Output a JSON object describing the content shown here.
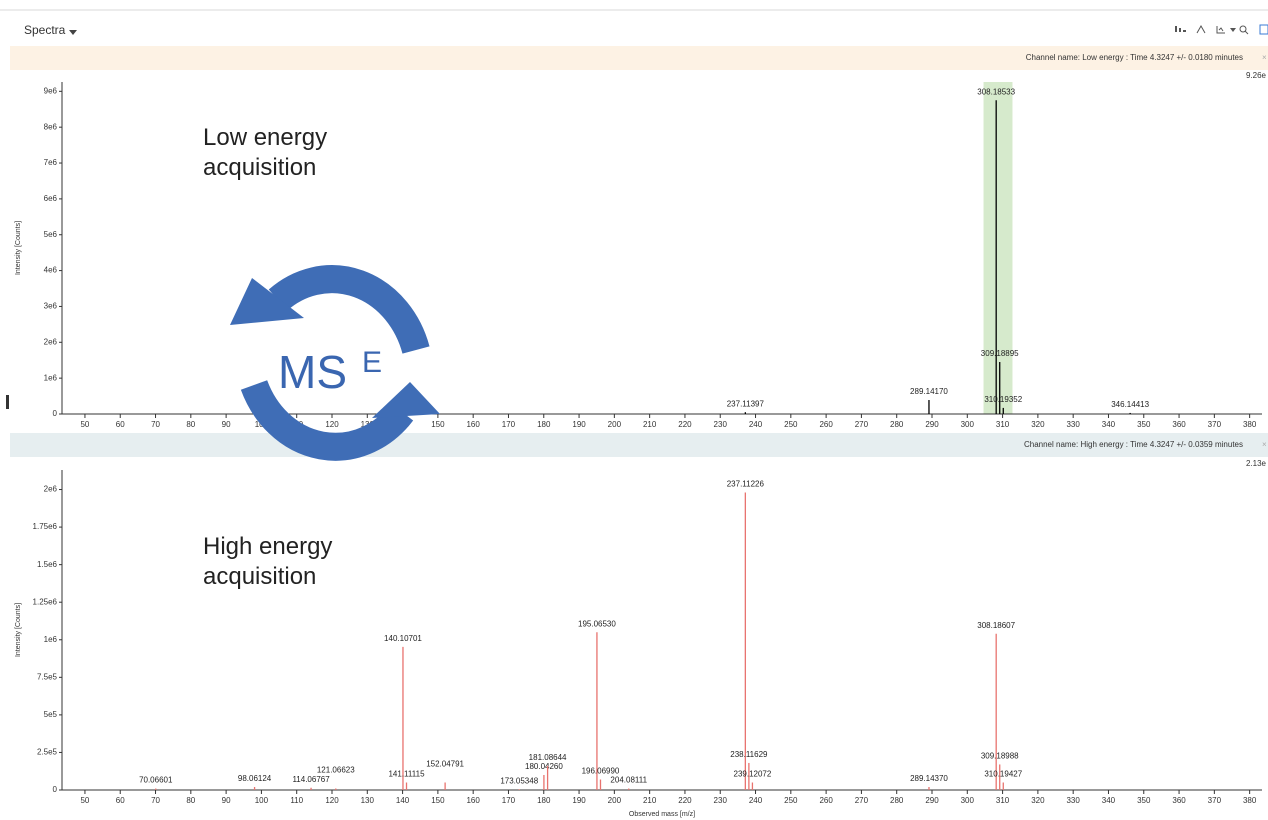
{
  "header": {
    "title": "Spectra"
  },
  "overlay": {
    "low": "Low energy acquisition",
    "high": "High energy acquisition",
    "ms": "MS",
    "sup": "E"
  },
  "chart_data": [
    {
      "type": "bar",
      "channel": "Channel name: Low energy : Time 4.3247 +/- 0.0180 minutes",
      "max_label": "9.26e",
      "ylabel": "Intensity [Counts]",
      "color": "#000000",
      "x": [
        237.11397,
        289.1417,
        308.18533,
        309.18895,
        310.19352,
        346.14413
      ],
      "x_labels": [
        "237.11397",
        "289.14170",
        "308.18533",
        "309.18895",
        "310.19352",
        "346.14413"
      ],
      "values": [
        50000,
        390000,
        8750000,
        1450000,
        170000,
        30000
      ],
      "xlim": [
        43.5,
        383.5
      ],
      "ylim": [
        0,
        9260000
      ],
      "xticks": [
        50,
        60,
        70,
        80,
        90,
        100,
        110,
        120,
        130,
        140,
        150,
        160,
        170,
        180,
        190,
        200,
        210,
        220,
        230,
        240,
        250,
        260,
        270,
        280,
        290,
        300,
        310,
        320,
        330,
        340,
        350,
        360,
        370,
        380
      ],
      "yticks": [
        0,
        {
          "value": 1000000,
          "label": "1e6"
        },
        {
          "value": 2000000,
          "label": "2e6"
        },
        {
          "value": 3000000,
          "label": "3e6"
        },
        {
          "value": 4000000,
          "label": "4e6"
        },
        {
          "value": 5000000,
          "label": "5e6"
        },
        {
          "value": 6000000,
          "label": "6e6"
        },
        {
          "value": 7000000,
          "label": "7e6"
        },
        {
          "value": 8000000,
          "label": "8e6"
        },
        {
          "value": 9000000,
          "label": "9e6"
        }
      ],
      "highlight": [
        304.6,
        312.8
      ],
      "highlight_color": "#d6eacc"
    },
    {
      "type": "bar",
      "channel": "Channel name: High energy : Time 4.3247 +/- 0.0359 minutes",
      "max_label": "2.13e",
      "ylabel": "Intensity [Counts]",
      "xlabel": "Observed mass [m/z]",
      "color": "#e8736e",
      "x": [
        70.06601,
        98.06124,
        114.06767,
        121.06623,
        140.10701,
        141.11115,
        152.04791,
        173.05348,
        180.0426,
        181.08644,
        195.0653,
        196.0699,
        204.08111,
        237.11226,
        238.11629,
        239.12072,
        289.1437,
        308.18607,
        309.18988,
        310.19427
      ],
      "x_labels": [
        "70.06601",
        "98.06124",
        "114.06767",
        "121.06623",
        "140.10701",
        "141.11115",
        "152.04791",
        "173.05348",
        "180.04260",
        "181.08644",
        "195.06530",
        "196.06990",
        "204.08111",
        "237.11226",
        "238.11629",
        "239.12072",
        "289.14370",
        "308.18607",
        "309.18988",
        "310.19427"
      ],
      "values": [
        10000,
        20000,
        15000,
        10000,
        953000,
        50000,
        50000,
        5000,
        100000,
        160000,
        1050000,
        70000,
        10000,
        1980000,
        180000,
        50000,
        20000,
        1040000,
        170000,
        50000
      ],
      "xlim": [
        43.5,
        383.5
      ],
      "ylim": [
        0,
        2130000
      ],
      "xticks": [
        50,
        60,
        70,
        80,
        90,
        100,
        110,
        120,
        130,
        140,
        150,
        160,
        170,
        180,
        190,
        200,
        210,
        220,
        230,
        240,
        250,
        260,
        270,
        280,
        290,
        300,
        310,
        320,
        330,
        340,
        350,
        360,
        370,
        380
      ],
      "yticks": [
        0,
        {
          "value": 250000,
          "label": "2.5e5"
        },
        {
          "value": 500000,
          "label": "5e5"
        },
        {
          "value": 750000,
          "label": "7.5e5"
        },
        {
          "value": 1000000,
          "label": "1e6"
        },
        {
          "value": 1250000,
          "label": "1.25e6"
        },
        {
          "value": 1500000,
          "label": "1.5e6"
        },
        {
          "value": 1750000,
          "label": "1.75e6"
        },
        {
          "value": 2000000,
          "label": "2e6"
        }
      ]
    }
  ]
}
